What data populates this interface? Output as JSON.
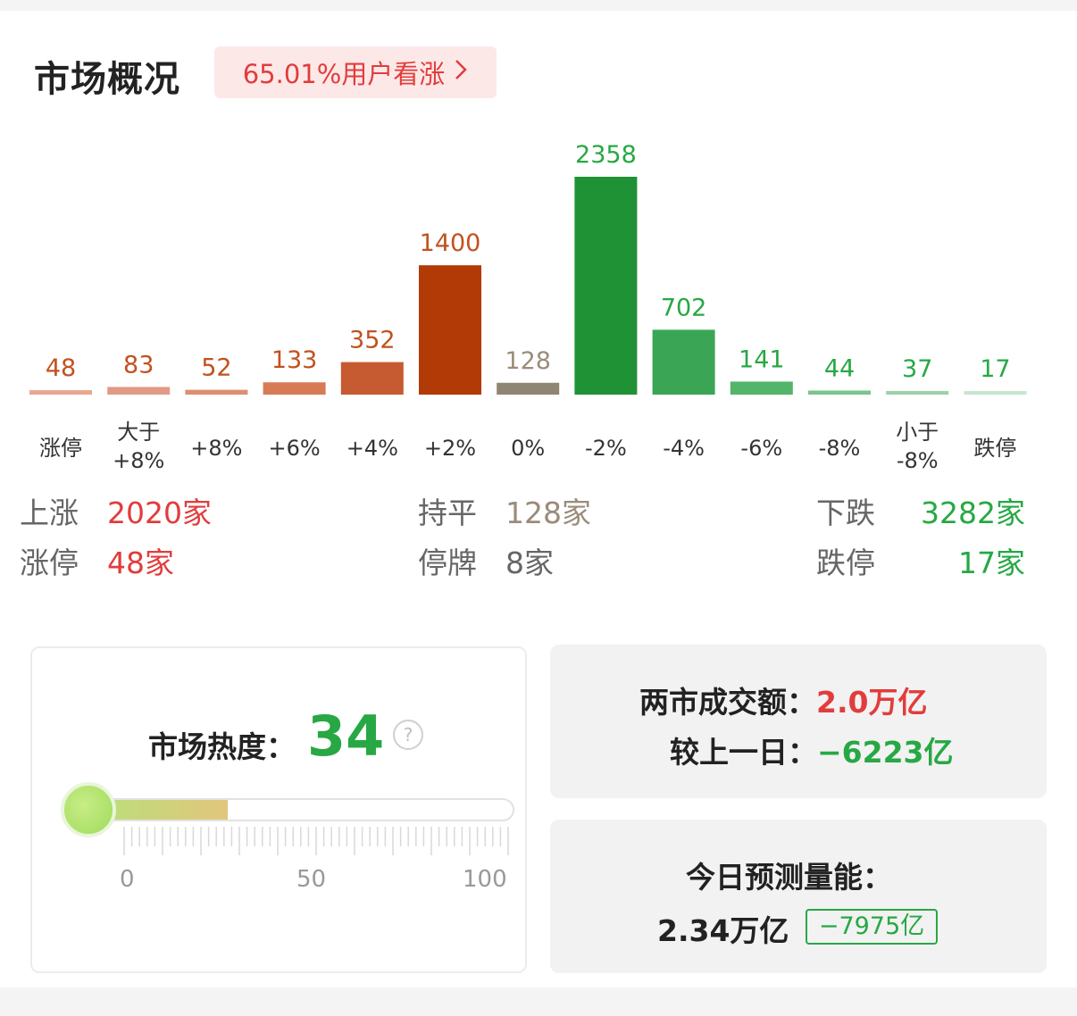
{
  "header": {
    "title": "市场概况",
    "sentiment": "65.01%用户看涨",
    "chevron": "chevron-right-icon"
  },
  "chart_data": {
    "type": "bar",
    "categories": [
      "涨停",
      "大于+8%",
      "+8%",
      "+6%",
      "+4%",
      "+2%",
      "0%",
      "-2%",
      "-4%",
      "-6%",
      "-8%",
      "小于-8%",
      "跌停"
    ],
    "values": [
      48,
      83,
      52,
      133,
      352,
      1400,
      128,
      2358,
      702,
      141,
      44,
      37,
      17
    ],
    "colors": [
      "#e8a790",
      "#e09a86",
      "#dd8e70",
      "#d67b55",
      "#c65a30",
      "#b23a06",
      "#8e8572",
      "#1e9234",
      "#3aa655",
      "#52b56a",
      "#7ac58d",
      "#9ad2a8",
      "#c5e6cd"
    ],
    "label_colors": [
      "#c1521f",
      "#c1521f",
      "#c1521f",
      "#c1521f",
      "#c1521f",
      "#c1521f",
      "#9a8c7a",
      "#27a844",
      "#27a844",
      "#27a844",
      "#27a844",
      "#27a844",
      "#27a844"
    ],
    "ylim": [
      0,
      2358
    ]
  },
  "stats": {
    "up_label": "上涨",
    "up_value": "2020家",
    "flat_label": "持平",
    "flat_value": "128家",
    "down_label": "下跌",
    "down_value": "3282家",
    "limit_up_label": "涨停",
    "limit_up_value": "48家",
    "suspended_label": "停牌",
    "suspended_value": "8家",
    "limit_down_label": "跌停",
    "limit_down_value": "17家"
  },
  "heat": {
    "label": "市场热度：",
    "value": "34",
    "value_fraction": 0.34,
    "help_icon": "?",
    "scale_0": "0",
    "scale_50": "50",
    "scale_100": "100"
  },
  "turnover": {
    "label": "两市成交额：",
    "value": "2.0万亿",
    "compare_label": "较上一日：",
    "compare_value": "−6223亿"
  },
  "forecast": {
    "label": "今日预测量能：",
    "value": "2.34万亿",
    "delta": "−7975亿"
  }
}
